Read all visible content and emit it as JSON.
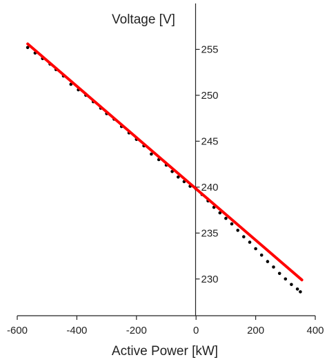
{
  "chart_data": {
    "type": "scatter",
    "title": "",
    "xlabel": "Active Power [kW]",
    "ylabel": "Voltage [V]",
    "xlim": [
      -600,
      400
    ],
    "ylim": [
      226,
      260
    ],
    "x_ticks": [
      -600,
      -400,
      -200,
      0,
      200,
      400
    ],
    "x_tick_labels": [
      "-600",
      "-400",
      "-200",
      "0",
      "200",
      "400"
    ],
    "y_ticks": [
      230,
      235,
      240,
      245,
      250,
      255
    ],
    "y_tick_labels": [
      "230",
      "235",
      "240",
      "245",
      "250",
      "255"
    ],
    "grid": false,
    "legend": "none",
    "series": [
      {
        "kind": "scatter",
        "color": "#000000",
        "points": [
          [
            -565,
            255.2
          ],
          [
            -540,
            254.6
          ],
          [
            -515,
            254.0
          ],
          [
            -490,
            253.4
          ],
          [
            -470,
            252.8
          ],
          [
            -445,
            252.1
          ],
          [
            -420,
            251.2
          ],
          [
            -395,
            250.6
          ],
          [
            -370,
            250.0
          ],
          [
            -345,
            249.3
          ],
          [
            -320,
            248.6
          ],
          [
            -300,
            248.0
          ],
          [
            -275,
            247.4
          ],
          [
            -250,
            246.6
          ],
          [
            -225,
            245.9
          ],
          [
            -200,
            245.2
          ],
          [
            -175,
            244.5
          ],
          [
            -150,
            243.6
          ],
          [
            -125,
            243.0
          ],
          [
            -100,
            242.4
          ],
          [
            -80,
            241.7
          ],
          [
            -60,
            241.1
          ],
          [
            -40,
            240.6
          ],
          [
            -20,
            240.1
          ],
          [
            0,
            239.8
          ],
          [
            20,
            239.2
          ],
          [
            40,
            238.5
          ],
          [
            60,
            237.8
          ],
          [
            80,
            237.2
          ],
          [
            100,
            236.6
          ],
          [
            120,
            236.0
          ],
          [
            140,
            235.3
          ],
          [
            160,
            234.6
          ],
          [
            180,
            234.0
          ],
          [
            200,
            233.3
          ],
          [
            220,
            232.6
          ],
          [
            240,
            231.9
          ],
          [
            260,
            231.3
          ],
          [
            280,
            230.6
          ],
          [
            300,
            230.0
          ],
          [
            320,
            229.4
          ],
          [
            340,
            228.9
          ],
          [
            350,
            228.6
          ]
        ]
      },
      {
        "kind": "line",
        "color": "#ff0000",
        "points": [
          [
            -565,
            255.6
          ],
          [
            355,
            229.9
          ]
        ]
      }
    ]
  }
}
